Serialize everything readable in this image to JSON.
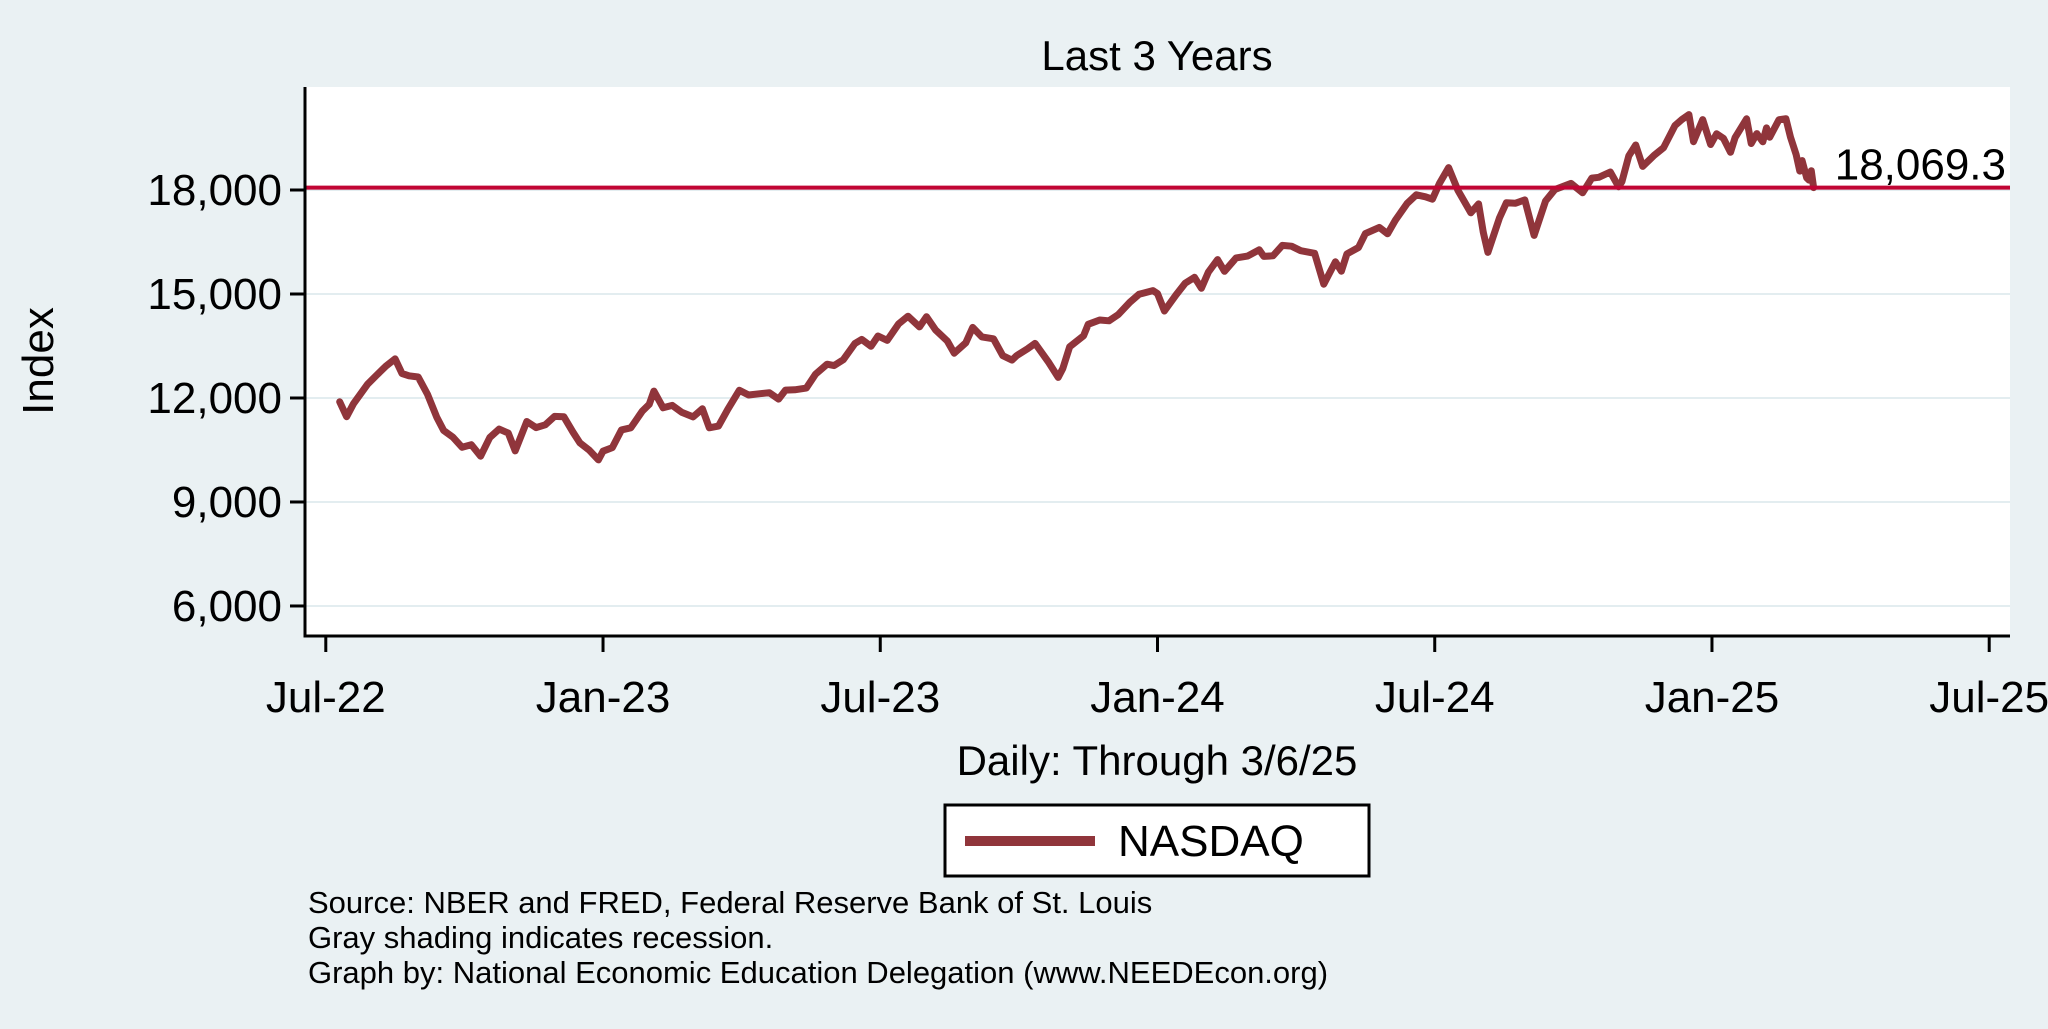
{
  "page": {
    "background_color": "#eaf1f3",
    "plot_background_color": "#ffffff",
    "gridline_color": "#e3edf0"
  },
  "chart_data": {
    "type": "line",
    "title": "Last 3 Years",
    "subtitle": "Daily: Through 3/6/25",
    "ylabel": "Index",
    "xlabel": "",
    "grid": true,
    "legend_position": "bottom-center",
    "x_ticks": [
      {
        "month": 0,
        "label": "Jul-22"
      },
      {
        "month": 6,
        "label": "Jan-23"
      },
      {
        "month": 12,
        "label": "Jul-23"
      },
      {
        "month": 18,
        "label": "Jan-24"
      },
      {
        "month": 24,
        "label": "Jul-24"
      },
      {
        "month": 30,
        "label": "Jan-25"
      },
      {
        "month": 36,
        "label": "Jul-25"
      }
    ],
    "y_ticks": [
      {
        "value": 6000,
        "label": "6,000"
      },
      {
        "value": 9000,
        "label": "9,000"
      },
      {
        "value": 12000,
        "label": "12,000"
      },
      {
        "value": 15000,
        "label": "15,000"
      },
      {
        "value": 18000,
        "label": "18,000"
      }
    ],
    "xlim_months": [
      -0.45,
      36.45
    ],
    "ylim": [
      5134,
      20971
    ],
    "reference_line": {
      "value": 18069.3,
      "label": "18,069.3",
      "color": "#C10534"
    },
    "series": [
      {
        "name": "NASDAQ",
        "color": "#90353B",
        "points": [
          [
            0.3,
            11890
          ],
          [
            0.45,
            11460
          ],
          [
            0.6,
            11834
          ],
          [
            0.9,
            12391
          ],
          [
            1.1,
            12658
          ],
          [
            1.3,
            12921
          ],
          [
            1.5,
            13128
          ],
          [
            1.65,
            12705
          ],
          [
            1.8,
            12639
          ],
          [
            2.0,
            12606
          ],
          [
            2.2,
            12112
          ],
          [
            2.4,
            11448
          ],
          [
            2.55,
            11066
          ],
          [
            2.75,
            10868
          ],
          [
            2.95,
            10576
          ],
          [
            3.15,
            10652
          ],
          [
            3.35,
            10321
          ],
          [
            3.55,
            10860
          ],
          [
            3.75,
            11102
          ],
          [
            3.95,
            10988
          ],
          [
            4.1,
            10475
          ],
          [
            4.35,
            11323
          ],
          [
            4.55,
            11146
          ],
          [
            4.75,
            11226
          ],
          [
            4.95,
            11468
          ],
          [
            5.15,
            11461
          ],
          [
            5.35,
            11014
          ],
          [
            5.5,
            10705
          ],
          [
            5.7,
            10497
          ],
          [
            5.9,
            10213
          ],
          [
            6.0,
            10466
          ],
          [
            6.2,
            10569
          ],
          [
            6.4,
            11079
          ],
          [
            6.6,
            11140
          ],
          [
            6.85,
            11622
          ],
          [
            7.0,
            11816
          ],
          [
            7.1,
            12200
          ],
          [
            7.3,
            11718
          ],
          [
            7.5,
            11787
          ],
          [
            7.7,
            11590
          ],
          [
            7.95,
            11455
          ],
          [
            8.15,
            11689
          ],
          [
            8.3,
            11139
          ],
          [
            8.5,
            11188
          ],
          [
            8.7,
            11675
          ],
          [
            8.95,
            12222
          ],
          [
            9.15,
            12087
          ],
          [
            9.4,
            12123
          ],
          [
            9.6,
            12153
          ],
          [
            9.8,
            11967
          ],
          [
            9.95,
            12227
          ],
          [
            10.15,
            12235
          ],
          [
            10.4,
            12284
          ],
          [
            10.6,
            12688
          ],
          [
            10.85,
            12976
          ],
          [
            11.0,
            12935
          ],
          [
            11.2,
            13104
          ],
          [
            11.45,
            13573
          ],
          [
            11.6,
            13690
          ],
          [
            11.8,
            13492
          ],
          [
            11.95,
            13788
          ],
          [
            12.15,
            13661
          ],
          [
            12.4,
            14139
          ],
          [
            12.6,
            14358
          ],
          [
            12.85,
            14050
          ],
          [
            13.0,
            14346
          ],
          [
            13.2,
            13959
          ],
          [
            13.45,
            13644
          ],
          [
            13.6,
            13291
          ],
          [
            13.85,
            13590
          ],
          [
            14.0,
            14035
          ],
          [
            14.2,
            13762
          ],
          [
            14.45,
            13708
          ],
          [
            14.65,
            13224
          ],
          [
            14.85,
            13092
          ],
          [
            14.95,
            13219
          ],
          [
            15.2,
            13431
          ],
          [
            15.35,
            13574
          ],
          [
            15.65,
            13018
          ],
          [
            15.85,
            12595
          ],
          [
            15.95,
            12851
          ],
          [
            16.1,
            13478
          ],
          [
            16.4,
            13798
          ],
          [
            16.5,
            14125
          ],
          [
            16.75,
            14250
          ],
          [
            16.95,
            14226
          ],
          [
            17.15,
            14405
          ],
          [
            17.4,
            14761
          ],
          [
            17.6,
            14992
          ],
          [
            17.9,
            15099
          ],
          [
            18.0,
            15011
          ],
          [
            18.15,
            14510
          ],
          [
            18.4,
            14973
          ],
          [
            18.6,
            15311
          ],
          [
            18.8,
            15482
          ],
          [
            18.95,
            15164
          ],
          [
            19.1,
            15629
          ],
          [
            19.3,
            15991
          ],
          [
            19.45,
            15655
          ],
          [
            19.7,
            16042
          ],
          [
            19.95,
            16092
          ],
          [
            20.2,
            16274
          ],
          [
            20.3,
            16085
          ],
          [
            20.5,
            16103
          ],
          [
            20.7,
            16401
          ],
          [
            20.9,
            16379
          ],
          [
            21.1,
            16248
          ],
          [
            21.4,
            16175
          ],
          [
            21.6,
            15282
          ],
          [
            21.85,
            15928
          ],
          [
            21.98,
            15658
          ],
          [
            22.1,
            16156
          ],
          [
            22.35,
            16341
          ],
          [
            22.5,
            16743
          ],
          [
            22.8,
            16921
          ],
          [
            22.98,
            16735
          ],
          [
            23.15,
            17133
          ],
          [
            23.4,
            17608
          ],
          [
            23.6,
            17862
          ],
          [
            23.8,
            17805
          ],
          [
            23.95,
            17733
          ],
          [
            24.1,
            18188
          ],
          [
            24.3,
            18647
          ],
          [
            24.5,
            17997
          ],
          [
            24.78,
            17342
          ],
          [
            24.95,
            17599
          ],
          [
            25.05,
            16776
          ],
          [
            25.15,
            16200
          ],
          [
            25.4,
            17188
          ],
          [
            25.55,
            17632
          ],
          [
            25.75,
            17619
          ],
          [
            25.95,
            17713
          ],
          [
            26.15,
            16691
          ],
          [
            26.4,
            17684
          ],
          [
            26.6,
            18013
          ],
          [
            26.95,
            18189
          ],
          [
            27.2,
            17918
          ],
          [
            27.4,
            18343
          ],
          [
            27.55,
            18367
          ],
          [
            27.8,
            18519
          ],
          [
            27.98,
            18095
          ],
          [
            28.05,
            18240
          ],
          [
            28.2,
            18983
          ],
          [
            28.35,
            19299
          ],
          [
            28.5,
            18680
          ],
          [
            28.75,
            19003
          ],
          [
            28.95,
            19218
          ],
          [
            29.2,
            19860
          ],
          [
            29.35,
            20034
          ],
          [
            29.5,
            20174
          ],
          [
            29.6,
            19393
          ],
          [
            29.8,
            20031
          ],
          [
            29.97,
            19311
          ],
          [
            30.1,
            19621
          ],
          [
            30.25,
            19489
          ],
          [
            30.4,
            19088
          ],
          [
            30.5,
            19511
          ],
          [
            30.75,
            20053
          ],
          [
            30.85,
            19341
          ],
          [
            30.97,
            19627
          ],
          [
            31.1,
            19391
          ],
          [
            31.18,
            19791
          ],
          [
            31.25,
            19523
          ],
          [
            31.45,
            20027
          ],
          [
            31.6,
            20056
          ],
          [
            31.7,
            19524
          ],
          [
            31.82,
            19026
          ],
          [
            31.9,
            18544
          ],
          [
            31.95,
            18847
          ],
          [
            32.05,
            18350
          ],
          [
            32.1,
            18285
          ],
          [
            32.15,
            18553
          ],
          [
            32.2,
            18069.3
          ]
        ]
      }
    ],
    "notes": [
      "Source: NBER and FRED, Federal Reserve Bank of St. Louis",
      "Gray shading indicates recession.",
      "Graph by: National Economic Education Delegation (www.NEEDEcon.org)"
    ]
  }
}
